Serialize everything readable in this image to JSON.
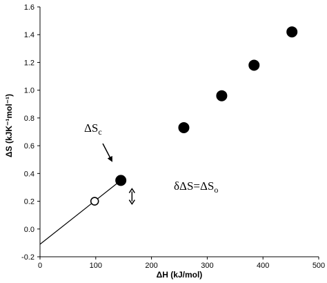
{
  "chart_data": {
    "type": "scatter",
    "xlabel": "ΔH (kJ/mol)",
    "ylabel": "ΔS (kJK⁻¹mol⁻¹)",
    "xlim": [
      0,
      500
    ],
    "ylim": [
      -0.2,
      1.6
    ],
    "x_ticks": [
      0,
      100,
      200,
      300,
      400,
      500
    ],
    "y_ticks": [
      -0.2,
      0.0,
      0.2,
      0.4,
      0.6,
      0.8,
      1.0,
      1.2,
      1.4,
      1.6
    ],
    "x_tick_labels": [
      "0",
      "100",
      "200",
      "300",
      "400",
      "500"
    ],
    "y_tick_labels": [
      "-0.2",
      "0.0",
      "0.2",
      "0.4",
      "0.6",
      "0.8",
      "1.0",
      "1.2",
      "1.4",
      "1.6"
    ],
    "grid": false,
    "series": [
      {
        "marker": "filled-circle",
        "points": [
          {
            "x": 145,
            "y": 0.35
          },
          {
            "x": 258,
            "y": 0.73
          },
          {
            "x": 326,
            "y": 0.96
          },
          {
            "x": 384,
            "y": 1.18
          },
          {
            "x": 452,
            "y": 1.42
          }
        ]
      },
      {
        "marker": "open-circle",
        "points": [
          {
            "x": 98,
            "y": 0.2
          }
        ]
      }
    ],
    "fit_line": {
      "x1": 0,
      "y1": -0.11,
      "x2": 145,
      "y2": 0.35
    },
    "double_arrow": {
      "x": 165,
      "y_from": 0.18,
      "y_to": 0.29
    },
    "annotations": {
      "delta_s_c": {
        "main": "ΔS",
        "sub": "c"
      },
      "delta_delta_s": {
        "main": "δΔS=ΔS",
        "sub": "o"
      }
    }
  }
}
